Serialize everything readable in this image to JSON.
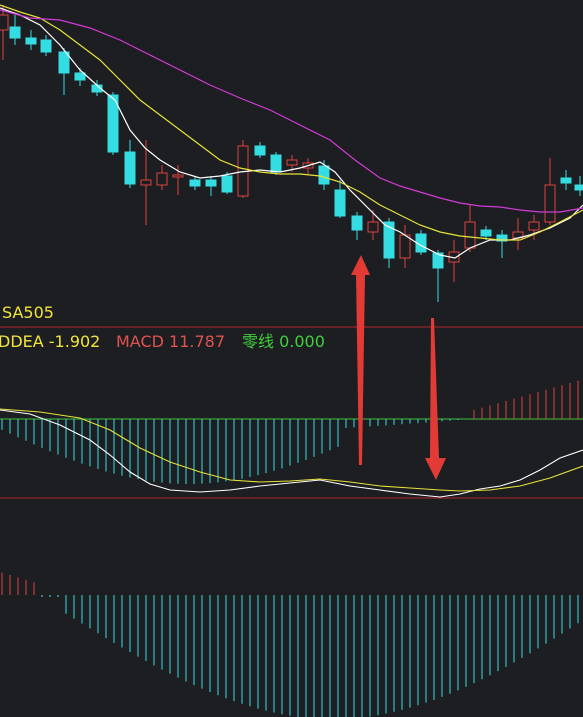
{
  "header": {
    "symbol": "SA505"
  },
  "indicators": [
    {
      "text": "DDEA -1.902"
    },
    {
      "text": "MACD 11.787"
    },
    {
      "text": "零线 0.000"
    }
  ]
}
